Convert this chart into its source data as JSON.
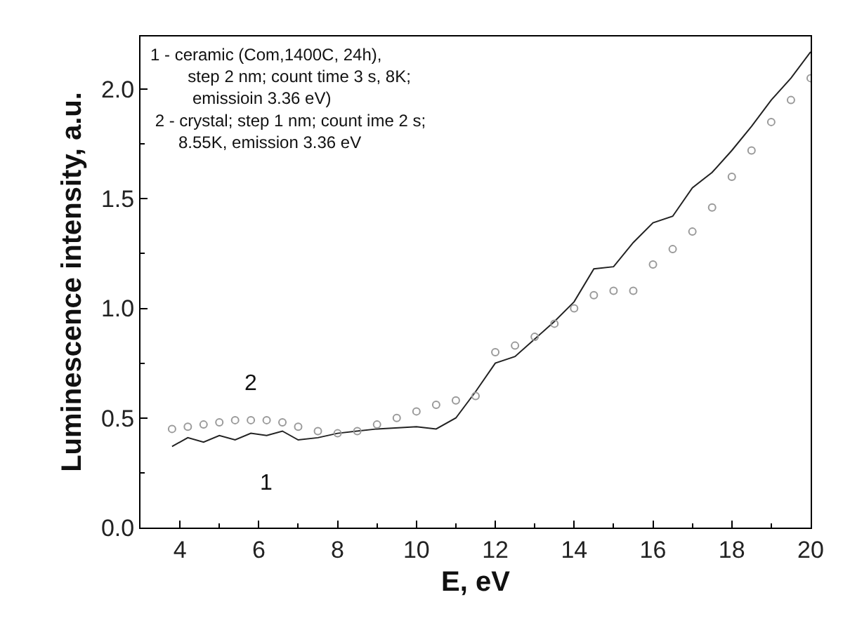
{
  "chart_data": {
    "type": "line",
    "xlabel": "E, eV",
    "ylabel": "Luminescence intensity, a.u.",
    "xlim": [
      3,
      20
    ],
    "xticks": [
      4,
      6,
      8,
      10,
      12,
      14,
      16,
      18,
      20
    ],
    "ylim": [
      0,
      2.24
    ],
    "yticks": [
      {
        "value": 0,
        "label": "0.0"
      },
      {
        "value": 0.5,
        "label": "0.5"
      },
      {
        "value": 1,
        "label": "1.0"
      },
      {
        "value": 1.5,
        "label": "1.5"
      },
      {
        "value": 2,
        "label": "2.0"
      }
    ],
    "grid": false,
    "legend": false,
    "annotations": [
      "1 - ceramic (Com,1400C, 24h),\n        step 2 nm; count time 3 s, 8K;\n         emissioin 3.36 eV)\n 2 - crystal; step 1 nm; count ime 2 s;\n      8.55K, emission 3.36 eV"
    ],
    "series": [
      {
        "name": "1",
        "marker": "none",
        "line_style": "solid",
        "color": "#222222",
        "x": [
          3.8,
          4.2,
          4.6,
          5,
          5.4,
          5.8,
          6.2,
          6.6,
          7,
          7.5,
          8,
          9,
          10,
          10.5,
          11,
          11.5,
          12,
          12.5,
          13,
          13.5,
          14,
          14.5,
          15,
          15.5,
          16,
          16.5,
          17,
          17.5,
          18,
          18.5,
          19,
          19.5,
          20
        ],
        "values": [
          0.37,
          0.41,
          0.39,
          0.42,
          0.4,
          0.43,
          0.42,
          0.44,
          0.4,
          0.41,
          0.43,
          0.45,
          0.46,
          0.45,
          0.5,
          0.62,
          0.75,
          0.78,
          0.86,
          0.94,
          1.03,
          1.18,
          1.19,
          1.3,
          1.39,
          1.42,
          1.55,
          1.62,
          1.72,
          1.83,
          1.95,
          2.05,
          2.17
        ]
      },
      {
        "name": "2",
        "type": "scatter",
        "marker": "circle",
        "color": "#9a9a9a",
        "x": [
          3.8,
          4.2,
          4.6,
          5,
          5.4,
          5.8,
          6.2,
          6.6,
          7,
          7.5,
          8,
          8.5,
          9,
          9.5,
          10,
          10.5,
          11,
          11.5,
          12,
          12.5,
          13,
          13.5,
          14,
          14.5,
          15,
          15.5,
          16,
          16.5,
          17,
          17.5,
          18,
          18.5,
          19,
          19.5,
          20
        ],
        "values": [
          0.45,
          0.46,
          0.47,
          0.48,
          0.49,
          0.49,
          0.49,
          0.48,
          0.46,
          0.44,
          0.43,
          0.44,
          0.47,
          0.5,
          0.53,
          0.56,
          0.58,
          0.6,
          0.8,
          0.83,
          0.87,
          0.93,
          1.0,
          1.06,
          1.08,
          1.08,
          1.2,
          1.27,
          1.35,
          1.46,
          1.6,
          1.72,
          1.85,
          1.95,
          2.05
        ]
      }
    ]
  }
}
